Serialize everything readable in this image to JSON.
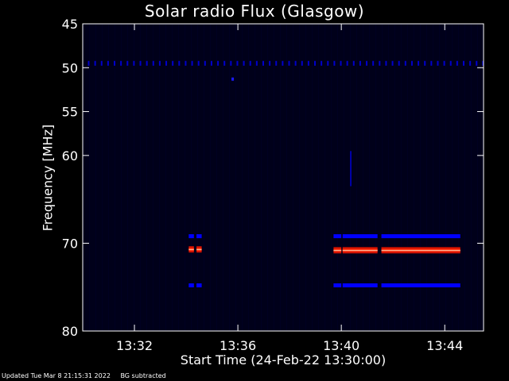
{
  "chart_data": {
    "type": "heatmap",
    "title": "Solar radio Flux (Glasgow)",
    "xlabel": "Start Time (24-Feb-22 13:30:00)",
    "ylabel": "Frequency [MHz]",
    "x_unit": "minutes after 13:30:00",
    "xlim": [
      0,
      15.5
    ],
    "ylim": [
      45,
      80
    ],
    "y_axis_inverted": true,
    "x_ticks": [
      {
        "value": 2,
        "label": "13:32"
      },
      {
        "value": 6,
        "label": "13:36"
      },
      {
        "value": 10,
        "label": "13:40"
      },
      {
        "value": 14,
        "label": "13:44"
      }
    ],
    "y_ticks": [
      {
        "value": 45,
        "label": "45"
      },
      {
        "value": 50,
        "label": "50"
      },
      {
        "value": 55,
        "label": "55"
      },
      {
        "value": 60,
        "label": "60"
      },
      {
        "value": 70,
        "label": "70"
      },
      {
        "value": 80,
        "label": "80"
      }
    ],
    "background_color": "#000000",
    "plot_background_color": "#00001a",
    "colorscale": [
      "#000012",
      "#0000ff",
      "#ff0000",
      "#ffc0a0"
    ],
    "features": [
      {
        "type": "dashed-band",
        "freq": 49.5,
        "t_start": 0.2,
        "t_end": 15.5,
        "color": "#0000cc"
      },
      {
        "type": "spot",
        "freq": 51.3,
        "t": 5.8,
        "color": "#1a1aff"
      },
      {
        "type": "vertical-streak",
        "t": 10.35,
        "freq_start": 59.5,
        "freq_end": 63.5,
        "color": "#0000aa"
      },
      {
        "type": "band",
        "freq": 69.2,
        "t_start": 4.1,
        "t_end": 4.3,
        "color": "#0000ff"
      },
      {
        "type": "band",
        "freq": 69.2,
        "t_start": 4.4,
        "t_end": 4.6,
        "color": "#0000ff"
      },
      {
        "type": "band",
        "freq": 70.7,
        "t_start": 4.1,
        "t_end": 4.3,
        "color": "#ff2000"
      },
      {
        "type": "band",
        "freq": 70.7,
        "t_start": 4.4,
        "t_end": 4.6,
        "color": "#ff2000"
      },
      {
        "type": "band",
        "freq": 74.8,
        "t_start": 4.1,
        "t_end": 4.3,
        "color": "#0000ff"
      },
      {
        "type": "band",
        "freq": 74.8,
        "t_start": 4.4,
        "t_end": 4.6,
        "color": "#0000ff"
      },
      {
        "type": "band",
        "freq": 69.2,
        "t_start": 9.7,
        "t_end": 10.0,
        "color": "#0000ff"
      },
      {
        "type": "band",
        "freq": 69.2,
        "t_start": 10.05,
        "t_end": 11.4,
        "color": "#0000ff"
      },
      {
        "type": "band",
        "freq": 69.2,
        "t_start": 11.55,
        "t_end": 14.6,
        "color": "#0000ff"
      },
      {
        "type": "band",
        "freq": 70.8,
        "t_start": 9.7,
        "t_end": 10.0,
        "color": "#ff2000"
      },
      {
        "type": "band",
        "freq": 70.8,
        "t_start": 10.05,
        "t_end": 11.4,
        "color": "#ff2000"
      },
      {
        "type": "band",
        "freq": 70.8,
        "t_start": 11.55,
        "t_end": 14.6,
        "color": "#ff2000"
      },
      {
        "type": "band",
        "freq": 74.8,
        "t_start": 9.7,
        "t_end": 10.0,
        "color": "#0000ff"
      },
      {
        "type": "band",
        "freq": 74.8,
        "t_start": 10.05,
        "t_end": 11.4,
        "color": "#0000ff"
      },
      {
        "type": "band",
        "freq": 74.8,
        "t_start": 11.55,
        "t_end": 14.6,
        "color": "#0000ff"
      }
    ]
  },
  "footer": {
    "updated": "Updated Tue Mar  8 21:15:31 2022",
    "note": "BG subtracted"
  }
}
